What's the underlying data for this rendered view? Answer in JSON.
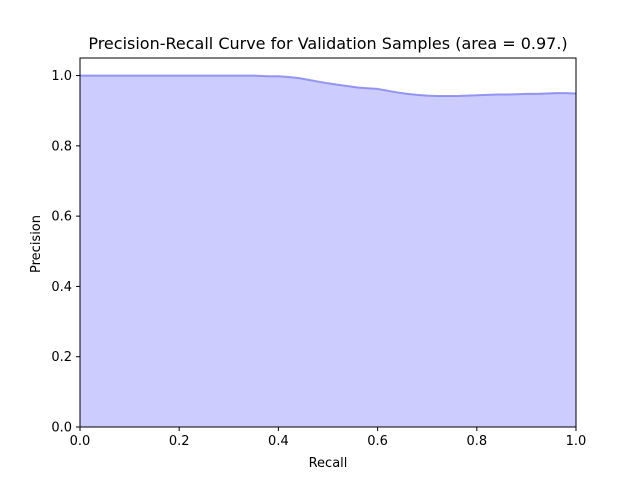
{
  "chart_data": {
    "type": "area",
    "title": "Precision-Recall Curve for Validation Samples (area = 0.97.)",
    "xlabel": "Recall",
    "ylabel": "Precision",
    "xlim": [
      0.0,
      1.0
    ],
    "ylim": [
      0.0,
      1.05
    ],
    "grid": false,
    "x_ticks": [
      "0.0",
      "0.2",
      "0.4",
      "0.6",
      "0.8",
      "1.0"
    ],
    "y_ticks": [
      "0.0",
      "0.2",
      "0.4",
      "0.6",
      "0.8",
      "1.0"
    ],
    "series": [
      {
        "x": [
          0.0,
          0.05,
          0.1,
          0.15,
          0.2,
          0.25,
          0.3,
          0.35,
          0.38,
          0.4,
          0.42,
          0.44,
          0.46,
          0.48,
          0.5,
          0.52,
          0.54,
          0.56,
          0.58,
          0.6,
          0.62,
          0.64,
          0.66,
          0.68,
          0.7,
          0.72,
          0.74,
          0.76,
          0.78,
          0.8,
          0.82,
          0.84,
          0.86,
          0.88,
          0.9,
          0.92,
          0.94,
          0.96,
          0.98,
          1.0
        ],
        "y": [
          1.0,
          1.0,
          1.0,
          1.0,
          1.0,
          1.0,
          1.0,
          1.0,
          0.998,
          0.998,
          0.996,
          0.993,
          0.988,
          0.983,
          0.978,
          0.974,
          0.97,
          0.966,
          0.964,
          0.962,
          0.957,
          0.952,
          0.948,
          0.945,
          0.943,
          0.942,
          0.942,
          0.942,
          0.943,
          0.944,
          0.945,
          0.946,
          0.946,
          0.947,
          0.948,
          0.948,
          0.949,
          0.95,
          0.95,
          0.949
        ]
      }
    ],
    "colors": {
      "fill": "#ccccff",
      "line": "#8080f0",
      "axis": "#000000"
    }
  }
}
